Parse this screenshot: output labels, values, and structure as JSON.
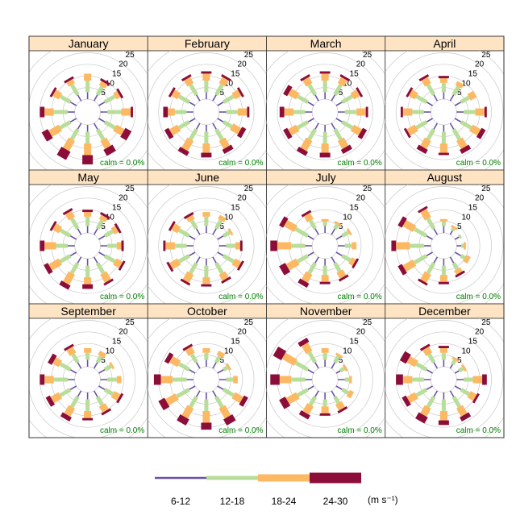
{
  "chart_data": {
    "type": "windrose",
    "panels": [
      {
        "label": "January",
        "calm": "calm = 0.0%"
      },
      {
        "label": "February",
        "calm": "calm = 0.0%"
      },
      {
        "label": "March",
        "calm": "calm = 0.0%"
      },
      {
        "label": "April",
        "calm": "calm = 0.0%"
      },
      {
        "label": "May",
        "calm": "calm = 0.0%"
      },
      {
        "label": "June",
        "calm": "calm = 0.0%"
      },
      {
        "label": "July",
        "calm": "calm = 0.0%"
      },
      {
        "label": "August",
        "calm": "calm = 0.0%"
      },
      {
        "label": "September",
        "calm": "calm = 0.0%"
      },
      {
        "label": "October",
        "calm": "calm = 0.0%"
      },
      {
        "label": "November",
        "calm": "calm = 0.0%"
      },
      {
        "label": "December",
        "calm": "calm = 0.0%"
      }
    ],
    "radial_ticks": [
      5,
      10,
      15,
      20,
      25
    ],
    "rmax": 25,
    "directions_deg": [
      0,
      30,
      60,
      90,
      120,
      150,
      180,
      210,
      240,
      270,
      300,
      330
    ],
    "bins": [
      {
        "label": "6-12",
        "color": "#6a51a3"
      },
      {
        "label": "12-18",
        "color": "#b8de9a"
      },
      {
        "label": "18-24",
        "color": "#fdb863"
      },
      {
        "label": "24-30",
        "color": "#8c0d3a"
      }
    ],
    "legend_unit": "(m s⁻¹)",
    "frequencies": [
      [
        [
          3,
          5,
          3,
          0
        ],
        [
          3,
          4,
          2,
          1
        ],
        [
          3,
          5,
          2,
          1
        ],
        [
          3,
          6,
          4,
          1
        ],
        [
          3,
          5,
          4,
          3
        ],
        [
          3,
          5,
          4,
          3
        ],
        [
          3,
          5,
          5,
          4
        ],
        [
          3,
          5,
          5,
          4
        ],
        [
          3,
          5,
          5,
          3
        ],
        [
          3,
          6,
          4,
          2
        ],
        [
          3,
          5,
          3,
          1
        ],
        [
          3,
          5,
          2,
          1
        ]
      ],
      [
        [
          3,
          5,
          3,
          1
        ],
        [
          3,
          5,
          3,
          1
        ],
        [
          3,
          5,
          3,
          1
        ],
        [
          3,
          5,
          4,
          1
        ],
        [
          3,
          4,
          4,
          2
        ],
        [
          3,
          5,
          4,
          2
        ],
        [
          3,
          5,
          4,
          2
        ],
        [
          3,
          5,
          5,
          2
        ],
        [
          3,
          5,
          4,
          2
        ],
        [
          3,
          5,
          3,
          2
        ],
        [
          3,
          5,
          3,
          1
        ],
        [
          3,
          5,
          3,
          1
        ]
      ],
      [
        [
          3,
          5,
          3,
          1
        ],
        [
          3,
          5,
          3,
          1
        ],
        [
          3,
          5,
          3,
          1
        ],
        [
          3,
          5,
          4,
          1
        ],
        [
          3,
          5,
          4,
          2
        ],
        [
          3,
          5,
          4,
          2
        ],
        [
          3,
          5,
          4,
          2
        ],
        [
          3,
          5,
          5,
          2
        ],
        [
          3,
          5,
          4,
          2
        ],
        [
          3,
          5,
          4,
          2
        ],
        [
          3,
          5,
          4,
          2
        ],
        [
          3,
          5,
          3,
          1
        ]
      ],
      [
        [
          3,
          4,
          2,
          1
        ],
        [
          3,
          4,
          2,
          0
        ],
        [
          3,
          4,
          3,
          0
        ],
        [
          3,
          5,
          4,
          1
        ],
        [
          3,
          5,
          4,
          2
        ],
        [
          3,
          5,
          4,
          2
        ],
        [
          3,
          5,
          4,
          1
        ],
        [
          3,
          5,
          4,
          2
        ],
        [
          3,
          5,
          4,
          1
        ],
        [
          3,
          5,
          4,
          1
        ],
        [
          3,
          5,
          3,
          1
        ],
        [
          3,
          5,
          3,
          1
        ]
      ],
      [
        [
          3,
          4,
          2,
          1
        ],
        [
          3,
          4,
          2,
          1
        ],
        [
          3,
          4,
          2,
          1
        ],
        [
          3,
          4,
          2,
          1
        ],
        [
          3,
          5,
          3,
          1
        ],
        [
          3,
          5,
          4,
          1
        ],
        [
          3,
          5,
          3,
          2
        ],
        [
          3,
          5,
          5,
          2
        ],
        [
          3,
          5,
          5,
          2
        ],
        [
          3,
          5,
          5,
          2
        ],
        [
          3,
          5,
          3,
          1
        ],
        [
          3,
          5,
          3,
          1
        ]
      ],
      [
        [
          3,
          4,
          2,
          0
        ],
        [
          3,
          4,
          2,
          0
        ],
        [
          3,
          3,
          1,
          0
        ],
        [
          3,
          4,
          2,
          1
        ],
        [
          3,
          5,
          3,
          1
        ],
        [
          3,
          5,
          3,
          1
        ],
        [
          3,
          5,
          3,
          1
        ],
        [
          3,
          5,
          4,
          1
        ],
        [
          3,
          5,
          4,
          1
        ],
        [
          3,
          5,
          4,
          1
        ],
        [
          3,
          5,
          3,
          1
        ],
        [
          3,
          4,
          2,
          1
        ]
      ],
      [
        [
          3,
          2,
          1,
          0
        ],
        [
          3,
          2,
          1,
          0
        ],
        [
          3,
          3,
          1,
          0
        ],
        [
          3,
          3,
          2,
          0
        ],
        [
          3,
          4,
          2,
          1
        ],
        [
          3,
          4,
          3,
          1
        ],
        [
          3,
          4,
          3,
          1
        ],
        [
          3,
          5,
          4,
          2
        ],
        [
          3,
          5,
          5,
          3
        ],
        [
          3,
          6,
          6,
          3
        ],
        [
          3,
          6,
          5,
          2
        ],
        [
          3,
          4,
          3,
          1
        ]
      ],
      [
        [
          3,
          2,
          1,
          0
        ],
        [
          2,
          1,
          1,
          0
        ],
        [
          2,
          1,
          0,
          0
        ],
        [
          2,
          1,
          1,
          0
        ],
        [
          3,
          2,
          2,
          0
        ],
        [
          3,
          3,
          2,
          1
        ],
        [
          3,
          4,
          3,
          1
        ],
        [
          3,
          5,
          4,
          1
        ],
        [
          3,
          6,
          5,
          2
        ],
        [
          3,
          6,
          6,
          2
        ],
        [
          3,
          6,
          5,
          2
        ],
        [
          3,
          5,
          4,
          1
        ]
      ],
      [
        [
          3,
          3,
          2,
          0
        ],
        [
          3,
          3,
          2,
          0
        ],
        [
          3,
          3,
          1,
          0
        ],
        [
          3,
          4,
          2,
          0
        ],
        [
          3,
          4,
          3,
          1
        ],
        [
          3,
          4,
          3,
          1
        ],
        [
          3,
          5,
          3,
          1
        ],
        [
          3,
          5,
          4,
          2
        ],
        [
          3,
          5,
          4,
          2
        ],
        [
          3,
          6,
          4,
          2
        ],
        [
          3,
          5,
          3,
          2
        ],
        [
          3,
          4,
          3,
          1
        ]
      ],
      [
        [
          3,
          3,
          2,
          0
        ],
        [
          3,
          3,
          2,
          0
        ],
        [
          3,
          2,
          1,
          0
        ],
        [
          3,
          3,
          2,
          0
        ],
        [
          3,
          5,
          4,
          2
        ],
        [
          3,
          5,
          5,
          3
        ],
        [
          3,
          5,
          5,
          3
        ],
        [
          3,
          5,
          5,
          3
        ],
        [
          3,
          6,
          5,
          3
        ],
        [
          3,
          6,
          5,
          3
        ],
        [
          3,
          5,
          4,
          2
        ],
        [
          3,
          4,
          3,
          1
        ]
      ],
      [
        [
          3,
          3,
          2,
          0
        ],
        [
          3,
          3,
          1,
          0
        ],
        [
          2,
          2,
          1,
          0
        ],
        [
          3,
          2,
          1,
          0
        ],
        [
          3,
          3,
          2,
          0
        ],
        [
          3,
          3,
          3,
          1
        ],
        [
          3,
          3,
          3,
          1
        ],
        [
          3,
          4,
          4,
          2
        ],
        [
          3,
          5,
          5,
          3
        ],
        [
          3,
          6,
          5,
          4
        ],
        [
          3,
          6,
          6,
          4
        ],
        [
          3,
          5,
          4,
          2
        ]
      ],
      [
        [
          3,
          3,
          2,
          1
        ],
        [
          2,
          2,
          1,
          0
        ],
        [
          2,
          2,
          1,
          0
        ],
        [
          3,
          4,
          4,
          2
        ],
        [
          3,
          4,
          3,
          1
        ],
        [
          3,
          5,
          4,
          2
        ],
        [
          3,
          5,
          4,
          2
        ],
        [
          3,
          5,
          4,
          3
        ],
        [
          3,
          5,
          4,
          2
        ],
        [
          3,
          5,
          4,
          3
        ],
        [
          3,
          5,
          4,
          3
        ],
        [
          3,
          4,
          3,
          1
        ]
      ]
    ]
  }
}
